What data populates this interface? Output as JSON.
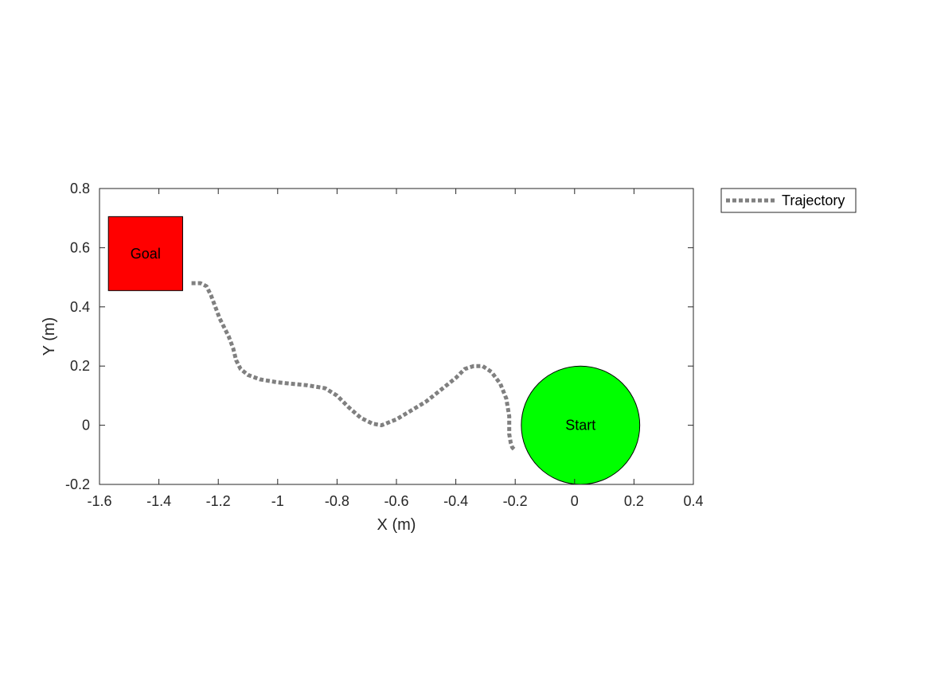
{
  "chart_data": {
    "type": "line",
    "title": "",
    "xlabel": "X (m)",
    "ylabel": "Y (m)",
    "xlim": [
      -1.6,
      0.4
    ],
    "ylim": [
      -0.2,
      0.8
    ],
    "xticks": [
      -1.6,
      -1.4,
      -1.2,
      -1,
      -0.8,
      -0.6,
      -0.4,
      -0.2,
      0,
      0.2,
      0.4
    ],
    "xtick_labels": [
      "-1.6",
      "-1.4",
      "-1.2",
      "-1",
      "-0.8",
      "-0.6",
      "-0.4",
      "-0.2",
      "0",
      "0.2",
      "0.4"
    ],
    "yticks": [
      -0.2,
      0,
      0.2,
      0.4,
      0.6,
      0.8
    ],
    "ytick_labels": [
      "-0.2",
      "0",
      "0.2",
      "0.4",
      "0.6",
      "0.8"
    ],
    "grid": false,
    "legend_position": "outside-top-right",
    "series": [
      {
        "name": "Trajectory",
        "color": "#808080",
        "line_style": "dotted",
        "x": [
          -1.29,
          -1.26,
          -1.24,
          -1.225,
          -1.21,
          -1.195,
          -1.18,
          -1.165,
          -1.15,
          -1.14,
          -1.125,
          -1.1,
          -1.06,
          -1.0,
          -0.9,
          -0.84,
          -0.8,
          -0.76,
          -0.72,
          -0.68,
          -0.65,
          -0.6,
          -0.55,
          -0.5,
          -0.45,
          -0.4,
          -0.37,
          -0.34,
          -0.31,
          -0.28,
          -0.25,
          -0.23,
          -0.22,
          -0.22,
          -0.215,
          -0.21,
          -0.2
        ],
        "y": [
          0.48,
          0.48,
          0.47,
          0.44,
          0.4,
          0.36,
          0.33,
          0.3,
          0.26,
          0.22,
          0.19,
          0.17,
          0.155,
          0.145,
          0.135,
          0.125,
          0.1,
          0.06,
          0.025,
          0.005,
          0.0,
          0.02,
          0.05,
          0.08,
          0.12,
          0.16,
          0.19,
          0.2,
          0.2,
          0.18,
          0.14,
          0.09,
          0.03,
          -0.03,
          -0.06,
          -0.075,
          -0.085
        ]
      }
    ],
    "annotations": [
      {
        "label": "Goal",
        "shape": "rectangle",
        "color": "#ff0000",
        "x_range": [
          -1.57,
          -1.32
        ],
        "y_range": [
          0.455,
          0.705
        ]
      },
      {
        "label": "Start",
        "shape": "circle",
        "color": "#00ff00",
        "center": [
          0.02,
          0.0
        ],
        "radius": 0.2
      }
    ]
  }
}
